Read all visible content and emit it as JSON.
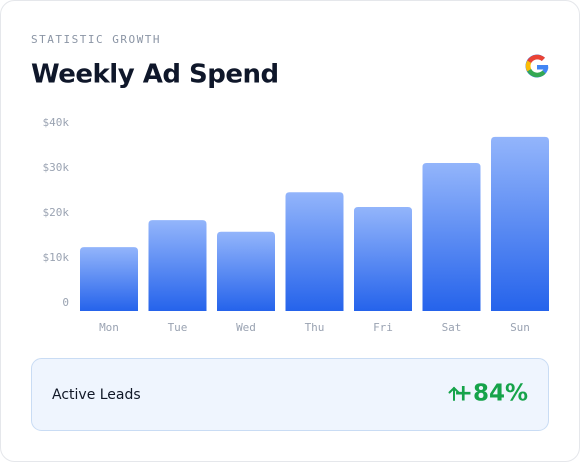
{
  "header": {
    "eyebrow": "STATISTIC GROWTH"
  },
  "chart_data": {
    "type": "bar",
    "title": "Weekly Ad Spend",
    "categories": [
      "Mon",
      "Tue",
      "Wed",
      "Thu",
      "Fri",
      "Sat",
      "Sun"
    ],
    "values": [
      14.2,
      20.2,
      17.6,
      26.4,
      23.1,
      32.9,
      38.7
    ],
    "color": "#2563eb",
    "ylim": [
      0,
      40
    ],
    "yticks": [
      0,
      {
        "value": 10,
        "label": "$10k"
      },
      {
        "value": 20,
        "label": "$20k"
      },
      {
        "value": 30,
        "label": "$30k"
      },
      {
        "value": 40,
        "label": "$40k"
      }
    ],
    "grid": false
  },
  "footer": {
    "label": "Active Leads",
    "value": "+84%"
  }
}
